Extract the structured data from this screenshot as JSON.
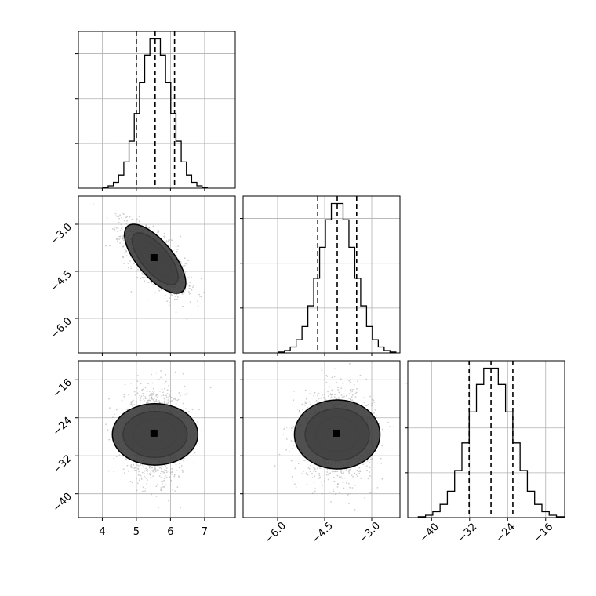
{
  "chart_data": {
    "type": "corner",
    "grid": true,
    "parameters": [
      {
        "range": [
          3.3,
          7.9
        ],
        "ticks": [
          4,
          5,
          6,
          7
        ],
        "tick_labels": [
          "4",
          "5",
          "6",
          "7"
        ]
      },
      {
        "range": [
          -7.1,
          -2.1
        ],
        "ticks": [
          -6.0,
          -4.5,
          -3.0
        ],
        "tick_labels": [
          "−6.0",
          "−4.5",
          "−3.0"
        ]
      },
      {
        "range": [
          -45,
          -12
        ],
        "ticks": [
          -40,
          -32,
          -24,
          -16
        ],
        "tick_labels": [
          "−40",
          "−32",
          "−24",
          "−16"
        ]
      }
    ],
    "marginals": [
      {
        "param": 0,
        "mean": 5.55,
        "sd": 0.45,
        "quantiles": [
          5.0,
          5.55,
          6.12
        ],
        "hist_max": 1.0
      },
      {
        "param": 1,
        "mean": -4.1,
        "sd": 0.55,
        "quantiles": [
          -4.72,
          -4.1,
          -3.48
        ],
        "hist_max": 1.0
      },
      {
        "param": 2,
        "mean": -27.5,
        "sd": 4.5,
        "quantiles": [
          -32.1,
          -27.5,
          -22.9
        ],
        "hist_max": 1.0
      }
    ],
    "joints": [
      {
        "x": 0,
        "y": 1,
        "mean": [
          5.55,
          -4.1
        ],
        "sd": [
          0.45,
          0.55
        ],
        "rho": -0.7
      },
      {
        "x": 0,
        "y": 2,
        "mean": [
          5.55,
          -27.5
        ],
        "sd": [
          0.45,
          4.5
        ],
        "rho": 0.0
      },
      {
        "x": 1,
        "y": 2,
        "mean": [
          -4.1,
          -27.5
        ],
        "sd": [
          0.55,
          4.5
        ],
        "rho": 0.0
      }
    ],
    "contour_levels": [
      0.5,
      1.0,
      1.5,
      2.0
    ],
    "colors": {
      "line": "#000000",
      "points": "#9e9e9e",
      "grid": "#b0b0b0"
    }
  }
}
